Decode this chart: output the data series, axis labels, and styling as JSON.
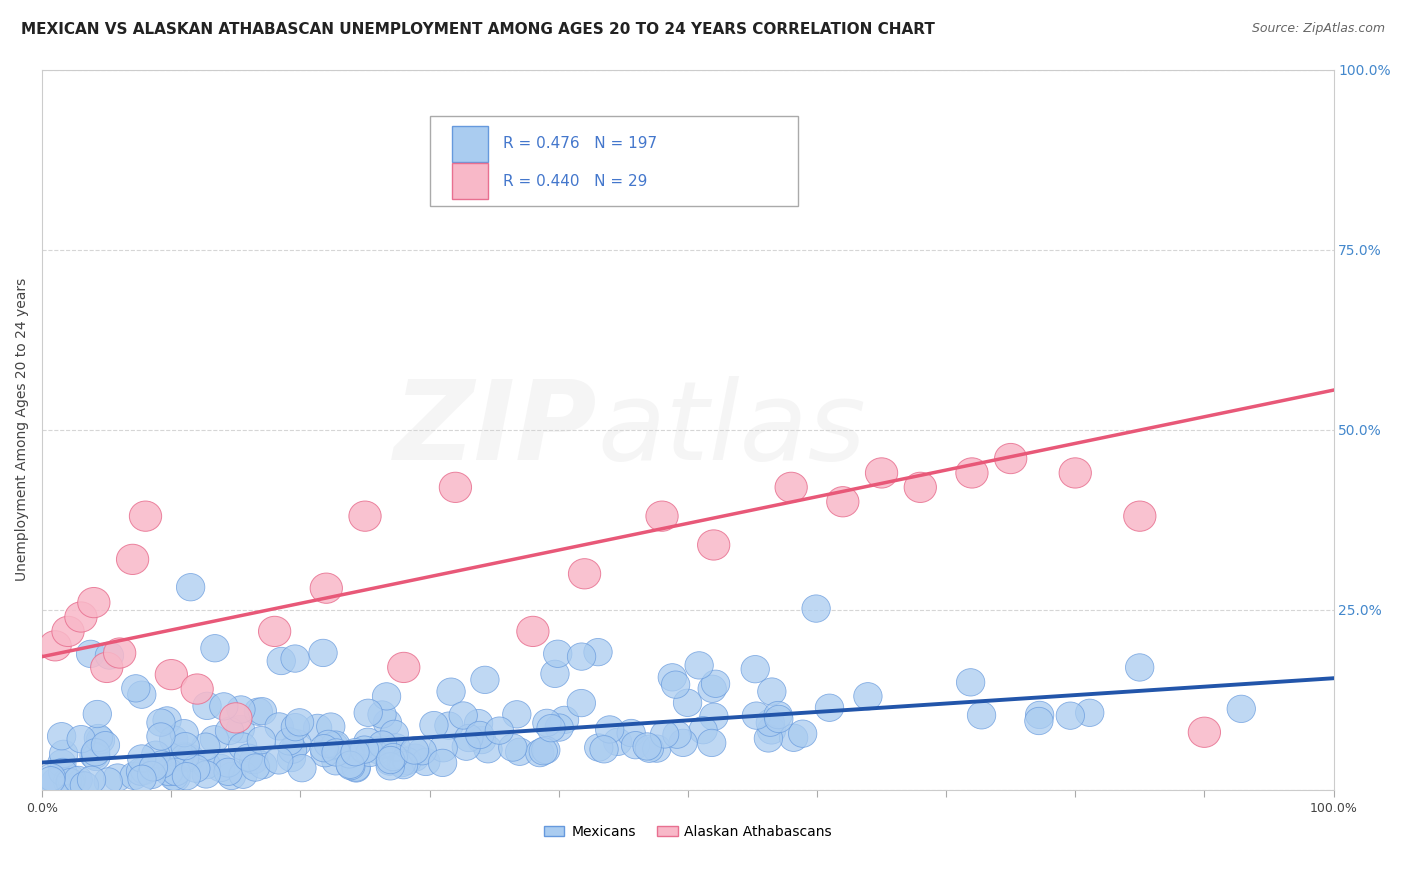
{
  "title": "MEXICAN VS ALASKAN ATHABASCAN UNEMPLOYMENT AMONG AGES 20 TO 24 YEARS CORRELATION CHART",
  "source": "Source: ZipAtlas.com",
  "ylabel": "Unemployment Among Ages 20 to 24 years",
  "xlim": [
    0,
    1
  ],
  "ylim": [
    0,
    1
  ],
  "xticks": [
    0.0,
    0.1,
    0.2,
    0.3,
    0.4,
    0.5,
    0.6,
    0.7,
    0.8,
    0.9,
    1.0
  ],
  "xticklabels": [
    "0.0%",
    "",
    "",
    "",
    "",
    "",
    "",
    "",
    "",
    "",
    "100.0%"
  ],
  "yticks": [
    0.0,
    0.25,
    0.5,
    0.75,
    1.0
  ],
  "yticklabels": [
    "",
    "25.0%",
    "50.0%",
    "75.0%",
    "100.0%"
  ],
  "mexican_R": 0.476,
  "mexican_N": 197,
  "athabascan_R": 0.44,
  "athabascan_N": 29,
  "mexican_color": "#aaccf0",
  "mexican_edge": "#6699dd",
  "mexican_line_color": "#2255aa",
  "athabascan_color": "#f8b8c8",
  "athabascan_edge": "#e87090",
  "athabascan_line_color": "#e85878",
  "background_color": "#ffffff",
  "grid_color": "#bbbbbb",
  "title_fontsize": 11,
  "axis_fontsize": 10,
  "tick_fontsize": 9,
  "mexican_trend_start_y": 0.038,
  "mexican_trend_end_y": 0.155,
  "athabascan_trend_start_y": 0.185,
  "athabascan_trend_end_y": 0.555
}
